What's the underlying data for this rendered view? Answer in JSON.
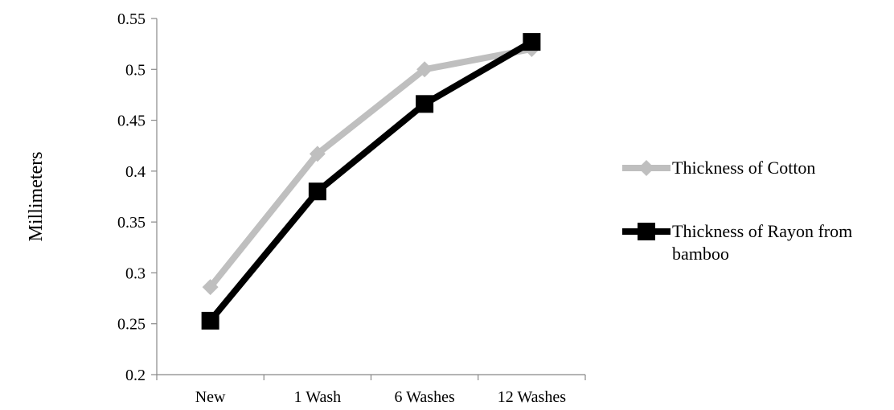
{
  "chart_data": {
    "type": "line",
    "categories": [
      "New",
      "1 Wash",
      "6 Washes",
      "12 Washes"
    ],
    "series": [
      {
        "name": "Thickness of Cotton",
        "values": [
          0.286,
          0.417,
          0.5,
          0.52
        ],
        "color": "#bfbfbf",
        "marker": "diamond"
      },
      {
        "name": "Thickness of Rayon from bamboo",
        "name_lines": [
          "Thickness of Rayon from",
          "bamboo"
        ],
        "values": [
          0.253,
          0.38,
          0.466,
          0.527
        ],
        "color": "#000000",
        "marker": "square"
      }
    ],
    "ylabel": "Millimeters",
    "ylim": [
      0.2,
      0.55
    ],
    "yticks": [
      0.2,
      0.25,
      0.3,
      0.35,
      0.4,
      0.45,
      0.5,
      0.55
    ],
    "ytick_labels": [
      "0.2",
      "0.25",
      "0.3",
      "0.35",
      "0.4",
      "0.45",
      "0.5",
      "0.55"
    ],
    "grid": false,
    "legend": "right"
  }
}
